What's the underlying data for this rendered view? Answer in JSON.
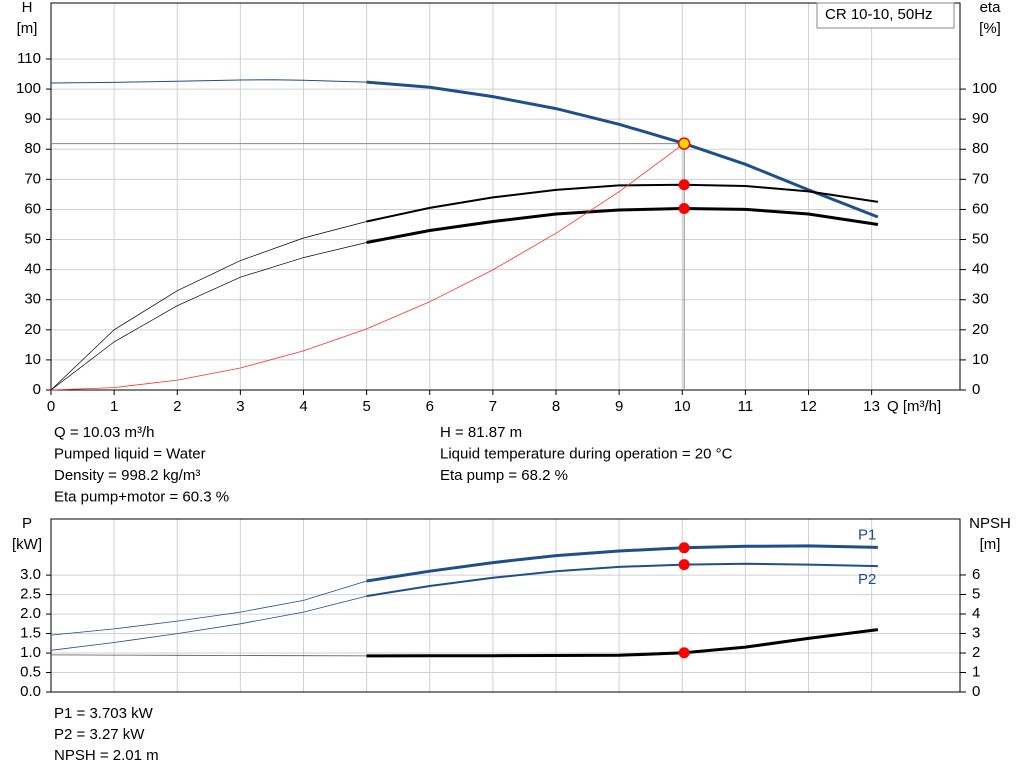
{
  "title": "CR 10-10, 50Hz",
  "info_top": {
    "left": [
      "Q = 10.03 m³/h",
      "Pumped liquid = Water",
      "Density = 998.2 kg/m³",
      "Eta pump+motor = 60.3 %"
    ],
    "right": [
      "H = 81.87 m",
      "Liquid temperature during operation = 20 °C",
      "Eta pump = 68.2 %"
    ]
  },
  "info_bottom": [
    "P1 = 3.703 kW",
    "P2 = 3.27 kW",
    "NPSH = 2.01 m"
  ],
  "chart_data": [
    {
      "type": "line",
      "ylabel": [
        "H",
        "[m]"
      ],
      "y2label": [
        "eta",
        "[%]"
      ],
      "xlabel": "Q [m³/h]",
      "xlim": [
        0,
        14.4
      ],
      "xticks": [
        0,
        1,
        2,
        3,
        4,
        5,
        6,
        7,
        8,
        9,
        10,
        11,
        12,
        13
      ],
      "ylim": [
        0,
        128.6
      ],
      "yticks": [
        0,
        10,
        20,
        30,
        40,
        50,
        60,
        70,
        80,
        90,
        100,
        110
      ],
      "y2lim": [
        0,
        128.6
      ],
      "y2ticks": [
        0,
        10,
        20,
        30,
        40,
        50,
        60,
        70,
        80,
        90,
        100
      ],
      "grid": true,
      "crosshair": true,
      "series": [
        {
          "color": "#1f4e8c",
          "width": 1,
          "x": [
            0,
            1,
            2,
            3,
            3.5,
            4,
            5
          ],
          "values": [
            102,
            102.2,
            102.6,
            103,
            103.1,
            102.9,
            102.3
          ]
        },
        {
          "color": "#1f4e8c",
          "width": 3,
          "x": [
            5,
            6,
            7,
            8,
            9,
            10,
            11,
            12,
            13.1
          ],
          "values": [
            102.3,
            100.6,
            97.5,
            93.5,
            88.3,
            82.1,
            75,
            66.5,
            57.5
          ]
        },
        {
          "color": "#000000",
          "width": 0.7,
          "axis": "y2",
          "x": [
            0,
            1,
            2,
            3,
            4,
            5
          ],
          "values": [
            0,
            20,
            33,
            43,
            50.5,
            56
          ]
        },
        {
          "color": "#000000",
          "width": 2,
          "axis": "y2",
          "x": [
            5,
            6,
            7,
            8,
            9,
            10,
            11,
            12,
            13.1
          ],
          "values": [
            56,
            60.5,
            64,
            66.5,
            68,
            68.2,
            67.8,
            66,
            62.5
          ]
        },
        {
          "color": "#000000",
          "width": 0.7,
          "axis": "y2",
          "x": [
            0,
            1,
            2,
            3,
            4,
            5
          ],
          "values": [
            0,
            16,
            28,
            37.5,
            44,
            49
          ]
        },
        {
          "color": "#000000",
          "width": 3,
          "axis": "y2",
          "x": [
            5,
            6,
            7,
            8,
            9,
            10,
            11,
            12,
            13.1
          ],
          "values": [
            49,
            53,
            56,
            58.5,
            59.8,
            60.3,
            60,
            58.5,
            55
          ]
        },
        {
          "color": "#ff3030",
          "width": 0.8,
          "x": [
            0,
            1,
            2,
            3,
            4,
            5,
            6,
            7,
            8,
            9,
            10.03
          ],
          "values": [
            0,
            0.8,
            3.3,
            7.3,
            13,
            20.3,
            29.3,
            39.9,
            52.1,
            65.9,
            81.87
          ]
        }
      ],
      "points": [
        {
          "x": 10.03,
          "y": 81.87,
          "color": "#ffd700",
          "stroke": "#ff0000"
        },
        {
          "x": 10.03,
          "y": 68.2,
          "color": "#ff0000",
          "axis": "y2"
        },
        {
          "x": 10.03,
          "y": 60.3,
          "color": "#ff0000",
          "axis": "y2"
        }
      ]
    },
    {
      "type": "line",
      "ylabel": [
        "P",
        "[kW]"
      ],
      "y2label": [
        "NPSH",
        "[m]"
      ],
      "xlim": [
        0,
        14.4
      ],
      "ylim": [
        0,
        4.44
      ],
      "yticks": [
        {
          "value": 0,
          "label": "0.0"
        },
        0.5,
        {
          "value": 1,
          "label": "1.0"
        },
        1.5,
        {
          "value": 2,
          "label": "2.0"
        },
        2.5,
        {
          "value": 3,
          "label": "3.0"
        }
      ],
      "y2lim": [
        0,
        8.87
      ],
      "y2ticks": [
        0,
        1,
        2,
        3,
        4,
        5,
        6
      ],
      "grid": true,
      "series": [
        {
          "color": "#1f4e8c",
          "width": 0.8,
          "x": [
            0,
            1,
            2,
            3,
            4,
            5
          ],
          "values": [
            1.46,
            1.62,
            1.82,
            2.05,
            2.35,
            2.85
          ]
        },
        {
          "name": "P1",
          "color": "#1f4e8c",
          "width": 3,
          "x": [
            5,
            6,
            7,
            8,
            9,
            10.03,
            11,
            12,
            13.1
          ],
          "values": [
            2.85,
            3.1,
            3.32,
            3.5,
            3.62,
            3.703,
            3.74,
            3.75,
            3.71
          ]
        },
        {
          "color": "#1f4e8c",
          "width": 0.8,
          "x": [
            0,
            1,
            2,
            3,
            4,
            5
          ],
          "values": [
            1.07,
            1.27,
            1.5,
            1.75,
            2.05,
            2.46
          ]
        },
        {
          "name": "P2",
          "color": "#1f4e8c",
          "width": 2,
          "x": [
            5,
            6,
            7,
            8,
            9,
            10.03,
            11,
            12,
            13.1
          ],
          "values": [
            2.46,
            2.72,
            2.93,
            3.1,
            3.21,
            3.27,
            3.29,
            3.27,
            3.23
          ]
        },
        {
          "color": "#555555",
          "width": 0.8,
          "axis": "y2",
          "x": [
            0,
            1,
            2,
            3,
            4,
            5
          ],
          "values": [
            1.9,
            1.89,
            1.88,
            1.87,
            1.86,
            1.85
          ]
        },
        {
          "color": "#000000",
          "width": 3,
          "axis": "y2",
          "x": [
            5,
            6,
            7,
            8,
            9,
            10.03,
            11,
            12,
            13.1
          ],
          "values": [
            1.85,
            1.86,
            1.86,
            1.87,
            1.88,
            2.01,
            2.3,
            2.75,
            3.2
          ]
        }
      ],
      "points": [
        {
          "x": 10.03,
          "y": 3.703,
          "color": "#ff0000"
        },
        {
          "x": 10.03,
          "y": 3.27,
          "color": "#ff0000"
        },
        {
          "x": 10.03,
          "y": 2.01,
          "color": "#ff0000",
          "axis": "y2"
        }
      ]
    }
  ]
}
